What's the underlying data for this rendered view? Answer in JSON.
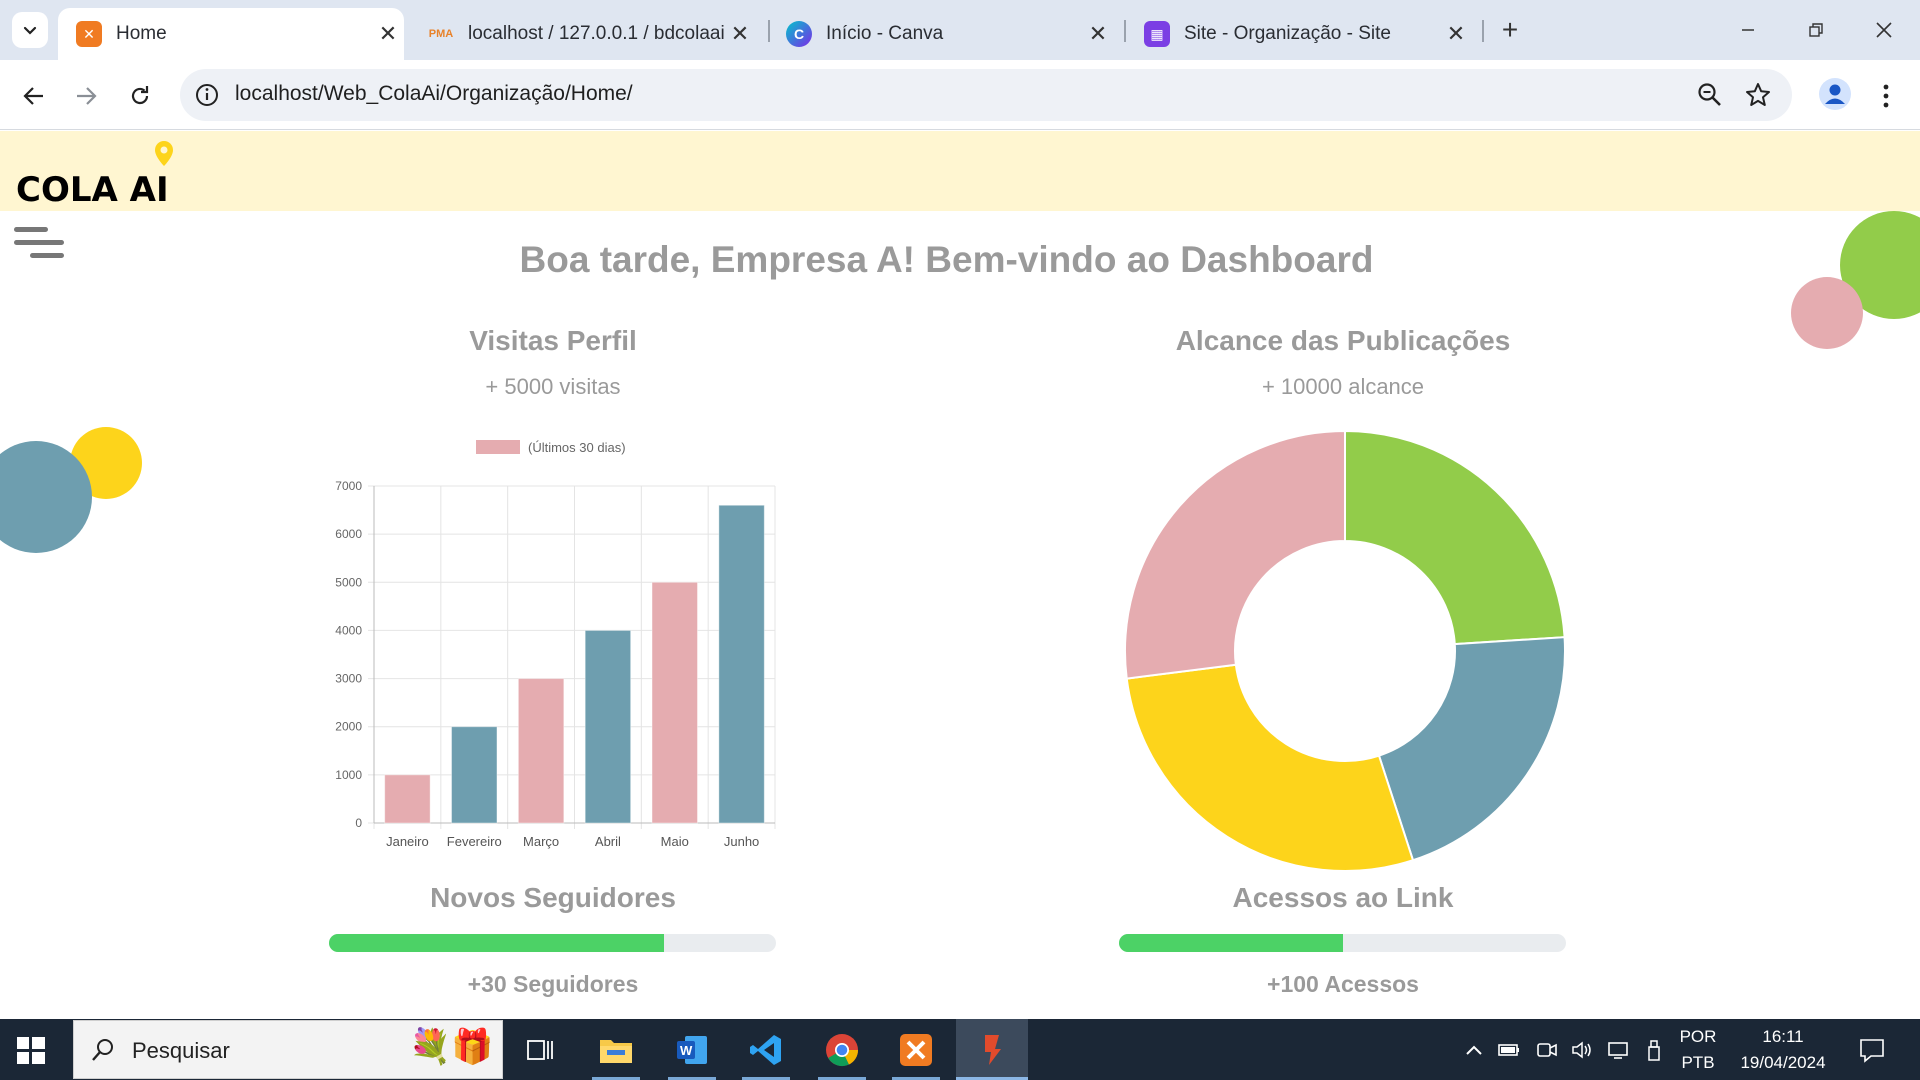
{
  "browser": {
    "tabs": [
      {
        "title": "Home",
        "active": true,
        "icon": "xampp-icon"
      },
      {
        "title": "localhost / 127.0.0.1 / bdcolaai /",
        "active": false,
        "icon": "phpmyadmin-icon"
      },
      {
        "title": "Início - Canva",
        "active": false,
        "icon": "canva-icon"
      },
      {
        "title": "Site - Organização - Site",
        "active": false,
        "icon": "site-icon"
      }
    ],
    "new_tab_label": "+",
    "address": "localhost/Web_ColaAi/Organização/Home/"
  },
  "site": {
    "logo_text": "COLA AI",
    "welcome": "Boa tarde, Empresa A! Bem-vindo ao Dashboard",
    "sections": {
      "visits": {
        "title": "Visitas Perfil",
        "subtitle": "+ 5000 visitas"
      },
      "reach": {
        "title": "Alcance das Publicações",
        "subtitle": "+ 10000 alcance"
      },
      "followers": {
        "title": "Novos Seguidores",
        "stat": "+30 Seguidores",
        "progress": 0.75
      },
      "link": {
        "title": "Acessos ao Link",
        "stat": "+100 Acessos",
        "progress": 0.5
      }
    },
    "colors": {
      "pink": "#e5acb0",
      "teal": "#6e9eaf",
      "green": "#92cc4a",
      "yellow": "#fdd41b",
      "progress": "#4cd266",
      "header_bg": "#fff6d1"
    }
  },
  "chart_data": [
    {
      "type": "bar",
      "categories": [
        "Janeiro",
        "Fevereiro",
        "Março",
        "Abril",
        "Maio",
        "Junho"
      ],
      "series": [
        {
          "name": "(Últimos 30 dias)",
          "values": [
            1000,
            2000,
            3000,
            4000,
            5000,
            6600
          ]
        }
      ],
      "bar_colors": [
        "#e5acb0",
        "#6e9eaf",
        "#e5acb0",
        "#6e9eaf",
        "#e5acb0",
        "#6e9eaf"
      ],
      "ylim": [
        0,
        7000
      ],
      "yticks": [
        0,
        1000,
        2000,
        3000,
        4000,
        5000,
        6000,
        7000
      ],
      "legend": "top",
      "grid": true
    },
    {
      "type": "pie",
      "donut": true,
      "values": [
        24,
        21,
        28,
        27
      ],
      "colors": [
        "#92cc4a",
        "#6e9eaf",
        "#fdd41b",
        "#e5acb0"
      ]
    }
  ],
  "taskbar": {
    "search_placeholder": "Pesquisar",
    "apps": [
      "task-view-icon",
      "file-explorer-icon",
      "word-icon",
      "vscode-icon",
      "chrome-icon",
      "xampp-icon",
      "app-icon"
    ],
    "lang_top": "POR",
    "lang_bottom": "PTB",
    "time": "16:11",
    "date": "19/04/2024"
  }
}
